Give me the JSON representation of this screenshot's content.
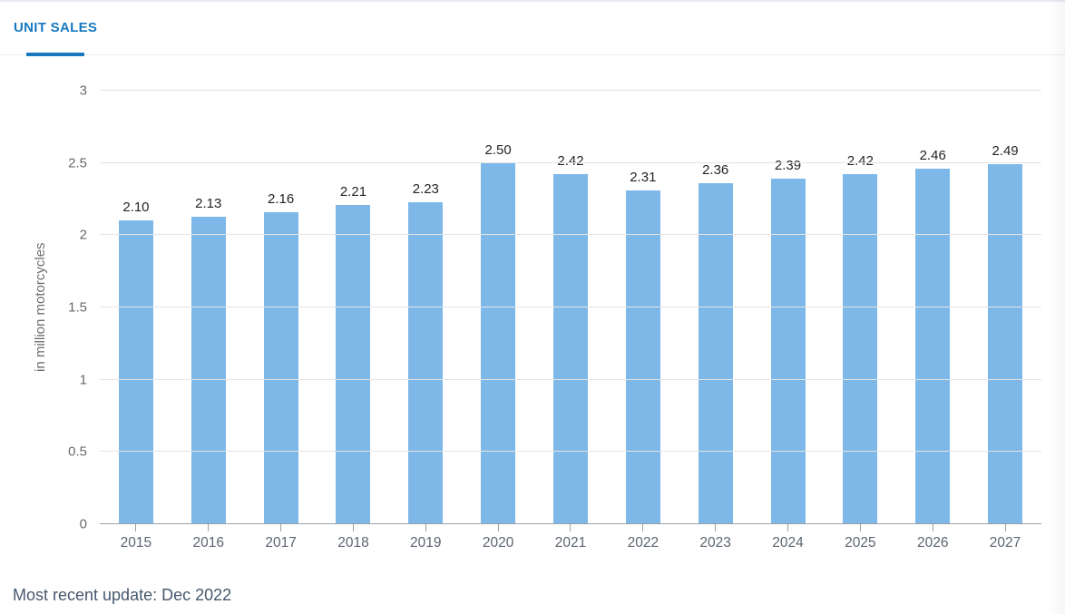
{
  "tab_bar": {
    "tabs": [
      {
        "label": "UNIT SALES",
        "active": true
      }
    ]
  },
  "chart_data": {
    "type": "bar",
    "title": "",
    "categories": [
      "2015",
      "2016",
      "2017",
      "2018",
      "2019",
      "2020",
      "2021",
      "2022",
      "2023",
      "2024",
      "2025",
      "2026",
      "2027"
    ],
    "values": [
      2.1,
      2.13,
      2.16,
      2.21,
      2.23,
      2.5,
      2.42,
      2.31,
      2.36,
      2.39,
      2.42,
      2.46,
      2.49
    ],
    "value_labels": [
      "2.10",
      "2.13",
      "2.16",
      "2.21",
      "2.23",
      "2.50",
      "2.42",
      "2.31",
      "2.36",
      "2.39",
      "2.42",
      "2.46",
      "2.49"
    ],
    "xlabel": "",
    "ylabel": "in million motorcycles",
    "ylim": [
      0,
      3
    ],
    "yticks": [
      0,
      0.5,
      1,
      1.5,
      2,
      2.5,
      3
    ],
    "grid": true,
    "legend": false
  },
  "footer": {
    "last_update": "Most recent update: Dec 2022"
  },
  "colors": {
    "accent_blue": "#1878BE",
    "bar_blue": "#7DB8E8",
    "gridline": "#E4E4E4",
    "axis_line": "#99A1A8",
    "y_tick_label": "#66696D",
    "year_label": "#5B6570",
    "value_label": "#242424",
    "footer_text": "#46586C"
  }
}
